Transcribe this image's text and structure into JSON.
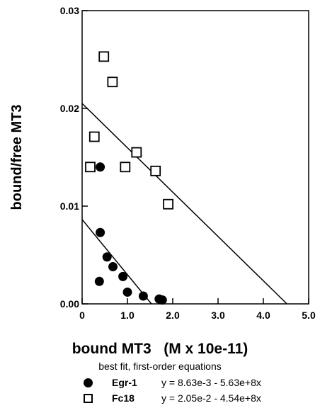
{
  "chart_data": {
    "type": "scatter",
    "title": "",
    "xlabel": "bound MT3   (M x 10e-11)",
    "ylabel": "bound/free MT3",
    "xlim": [
      0,
      5
    ],
    "ylim": [
      0,
      0.03
    ],
    "x_ticks": [
      "0",
      "1.0",
      "2.0",
      "3.0",
      "4.0",
      "5.0"
    ],
    "y_ticks": [
      "0.00",
      "0.01",
      "0.02",
      "0.03"
    ],
    "grid": false,
    "note": "best fit, first-order equations",
    "series": [
      {
        "name": "Egr-1",
        "marker": "filled-circle",
        "equation": "y = 8.63e-3 - 5.63e+8x",
        "fit": {
          "intercept": 0.00863,
          "x_intercept": 1.53
        },
        "points": [
          [
            0.4,
            0.014
          ],
          [
            0.4,
            0.0073
          ],
          [
            0.38,
            0.0023
          ],
          [
            0.55,
            0.0048
          ],
          [
            0.68,
            0.0038
          ],
          [
            0.9,
            0.0028
          ],
          [
            1.0,
            0.0012
          ],
          [
            1.35,
            0.0008
          ],
          [
            1.7,
            0.0005
          ],
          [
            1.77,
            0.0004
          ]
        ]
      },
      {
        "name": "Fc18",
        "marker": "open-square",
        "equation": "y = 2.05e-2 - 4.54e+8x",
        "fit": {
          "intercept": 0.0205,
          "x_intercept": 4.52
        },
        "points": [
          [
            0.48,
            0.0253
          ],
          [
            0.67,
            0.0227
          ],
          [
            0.27,
            0.0171
          ],
          [
            0.18,
            0.014
          ],
          [
            0.95,
            0.014
          ],
          [
            1.2,
            0.0155
          ],
          [
            1.62,
            0.0136
          ],
          [
            1.9,
            0.0102
          ]
        ]
      }
    ]
  }
}
